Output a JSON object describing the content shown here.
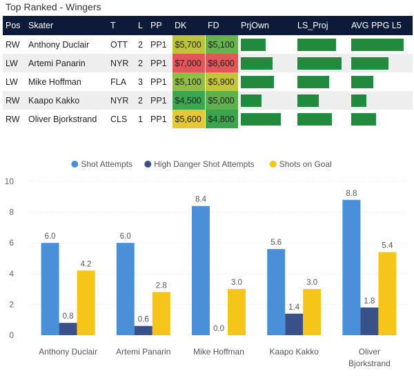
{
  "table": {
    "title": "Top Ranked - Wingers",
    "headers": [
      "Pos",
      "Skater",
      "T",
      "L",
      "PP",
      "DK",
      "FD",
      "PrjOwn",
      "LS_Proj",
      "AVG PPG L5"
    ],
    "rows": [
      {
        "pos": "RW",
        "skater": "Anthony Duclair",
        "team": "OTT",
        "line": "2",
        "pp": "PP1",
        "dk": "$5,700",
        "fd": "$5,100",
        "dk_color": "#bcc43a",
        "fd_color": "#67b44f",
        "prjown": 0.55,
        "ls_proj": 0.88,
        "avg_ppg": 0.95
      },
      {
        "pos": "LW",
        "skater": "Artemi Panarin",
        "team": "NYR",
        "line": "2",
        "pp": "PP1",
        "dk": "$7,000",
        "fd": "$8,600",
        "dk_color": "#e15759",
        "fd_color": "#e15759",
        "prjown": 0.7,
        "ls_proj": 1.0,
        "avg_ppg": 0.67
      },
      {
        "pos": "LW",
        "skater": "Mike Hoffman",
        "team": "FLA",
        "line": "3",
        "pp": "PP1",
        "dk": "$5,100",
        "fd": "$5,900",
        "dk_color": "#8fbd46",
        "fd_color": "#c5c43a",
        "prjown": 0.72,
        "ls_proj": 0.72,
        "avg_ppg": 0.4
      },
      {
        "pos": "RW",
        "skater": "Kaapo Kakko",
        "team": "NYR",
        "line": "2",
        "pp": "PP1",
        "dk": "$4,500",
        "fd": "$5,000",
        "dk_color": "#3aa64f",
        "fd_color": "#5eb04d",
        "prjown": 0.45,
        "ls_proj": 0.48,
        "avg_ppg": 0.28
      },
      {
        "pos": "RW",
        "skater": "Oliver Bjorkstrand",
        "team": "CLS",
        "line": "1",
        "pp": "PP1",
        "dk": "$5,600",
        "fd": "$4,800",
        "dk_color": "#e6c735",
        "fd_color": "#3ba54e",
        "prjown": 0.88,
        "ls_proj": 0.78,
        "avg_ppg": 0.45
      }
    ]
  },
  "chart_data": {
    "type": "bar",
    "categories": [
      "Anthony Duclair",
      "Artemi Panarin",
      "Mike Hoffman",
      "Kaapo Kakko",
      "Oliver Bjorkstrand"
    ],
    "series": [
      {
        "name": "Shot Attempts",
        "color": "#4a90d9",
        "values": [
          6.0,
          6.0,
          8.4,
          5.6,
          8.8
        ],
        "labels": [
          "6.0",
          "6.0",
          "8.4",
          "5.6",
          "8.8"
        ]
      },
      {
        "name": "High Danger Shot Attempts",
        "color": "#3a5088",
        "values": [
          0.8,
          0.6,
          0.0,
          1.4,
          1.8
        ],
        "labels": [
          "0.8",
          "0.6",
          "0.0",
          "1.4",
          "1.8"
        ]
      },
      {
        "name": "Shots on Goal",
        "color": "#f5c518",
        "values": [
          4.2,
          2.8,
          3.0,
          3.0,
          5.4
        ],
        "labels": [
          "4.2",
          "2.8",
          "3.0",
          "3.0",
          "5.4"
        ]
      }
    ],
    "ylim": [
      0,
      10
    ],
    "yticks": [
      "0",
      "2",
      "4",
      "6",
      "8",
      "10"
    ],
    "ytick_values": [
      0,
      2,
      4,
      6,
      8,
      10
    ],
    "legend_position": "top-center"
  }
}
